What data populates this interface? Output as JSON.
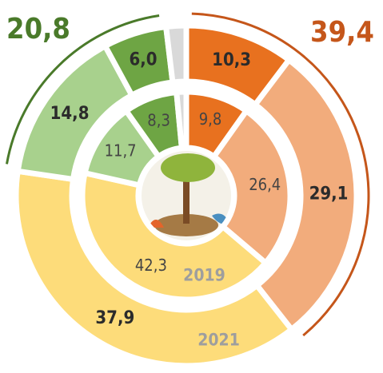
{
  "chart_data": {
    "type": "donut",
    "rings": [
      {
        "name": "2019",
        "values": [
          9.8,
          26.4,
          42.3,
          11.7,
          8.3,
          1.5
        ],
        "value_labels": [
          "9,8",
          "26,4",
          "42,3",
          "11,7",
          "8,3",
          null
        ],
        "colors": [
          "#e8711f",
          "#f2ac7c",
          "#fddc7a",
          "#a8d18d",
          "#6ea544",
          "#d9d9d9"
        ]
      },
      {
        "name": "2021",
        "values": [
          10.3,
          29.1,
          37.9,
          14.8,
          6.0,
          1.9
        ],
        "value_labels": [
          "10,3",
          "29,1",
          "37,9",
          "14,8",
          "6,0",
          null
        ],
        "colors": [
          "#e8711f",
          "#f2ac7c",
          "#fddc7a",
          "#a8d18d",
          "#6ea544",
          "#d9d9d9"
        ]
      }
    ],
    "groups": [
      {
        "value": 39.4,
        "label": "39,4",
        "color": "#c5561a"
      },
      {
        "value": 20.8,
        "label": "20,8",
        "color": "#4a7a2a"
      }
    ]
  }
}
